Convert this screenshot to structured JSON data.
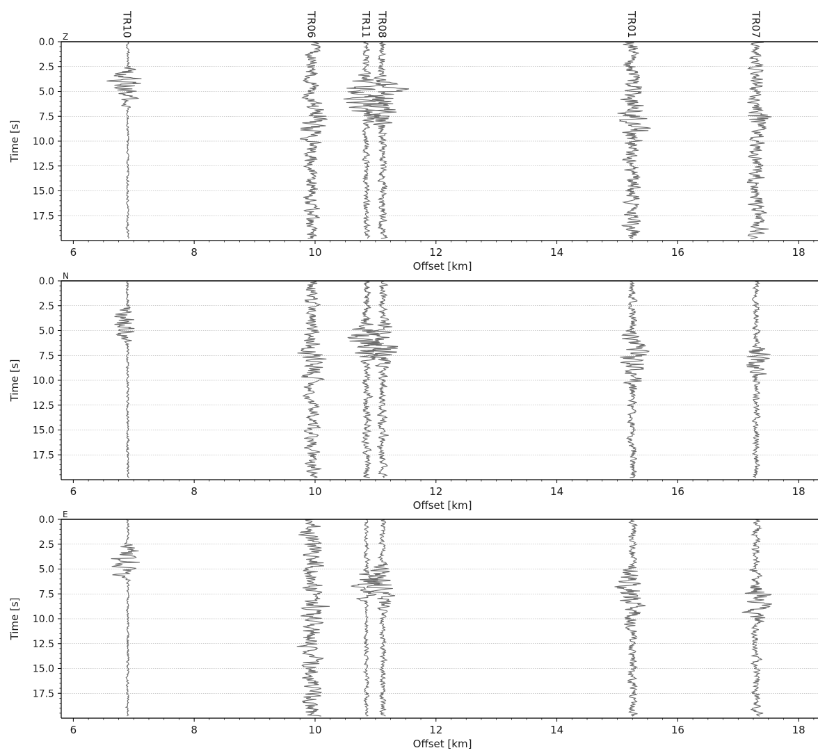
{
  "chart_data": {
    "type": "seismic_record_section",
    "x_label": "Offset [km]",
    "y_label": "Time [s]",
    "xlim": [
      5.8,
      18.3
    ],
    "ylim": [
      0,
      20
    ],
    "y_inverted": true,
    "x_ticks": [
      6,
      8,
      10,
      12,
      14,
      16,
      18
    ],
    "y_ticks": [
      0.0,
      2.5,
      5.0,
      7.5,
      10.0,
      12.5,
      15.0,
      17.5
    ],
    "y_tick_labels": [
      "0.0",
      "2.5",
      "5.0",
      "7.5",
      "10.0",
      "12.5",
      "15.0",
      "17.5"
    ],
    "horizontal_grid": true,
    "trace_color": "#6b6b6b",
    "stations": [
      {
        "name": "TR10",
        "offset_km": 6.9
      },
      {
        "name": "TR06",
        "offset_km": 9.95
      },
      {
        "name": "TR11",
        "offset_km": 10.85
      },
      {
        "name": "TR08",
        "offset_km": 11.12
      },
      {
        "name": "TR01",
        "offset_km": 15.25
      },
      {
        "name": "TR07",
        "offset_km": 17.3
      }
    ],
    "panels": [
      {
        "component": "Z",
        "traces": [
          {
            "station": "TR10",
            "background": 0.03,
            "bursts": [
              {
                "start": 2.3,
                "peak": 4.0,
                "end": 6.8,
                "amp": 0.45
              }
            ]
          },
          {
            "station": "TR06",
            "background": 0.18,
            "bursts": [
              {
                "start": 5.0,
                "peak": 7.5,
                "end": 12.5,
                "amp": 0.38
              }
            ]
          },
          {
            "station": "TR11",
            "background": 0.08,
            "bursts": [
              {
                "start": 3.0,
                "peak": 5.5,
                "end": 8.5,
                "amp": 0.6
              }
            ]
          },
          {
            "station": "TR08",
            "background": 0.1,
            "bursts": [
              {
                "start": 3.0,
                "peak": 6.0,
                "end": 9.0,
                "amp": 0.55
              }
            ]
          },
          {
            "station": "TR01",
            "background": 0.2,
            "bursts": [
              {
                "start": 4.0,
                "peak": 7.5,
                "end": 12.0,
                "amp": 0.42
              }
            ]
          },
          {
            "station": "TR07",
            "background": 0.2,
            "bursts": [
              {
                "start": 6.5,
                "peak": 7.2,
                "end": 9.5,
                "amp": 0.45
              }
            ]
          }
        ]
      },
      {
        "component": "N",
        "traces": [
          {
            "station": "TR10",
            "background": 0.03,
            "bursts": [
              {
                "start": 2.3,
                "peak": 4.2,
                "end": 6.5,
                "amp": 0.42
              }
            ]
          },
          {
            "station": "TR06",
            "background": 0.18,
            "bursts": [
              {
                "start": 4.5,
                "peak": 8.0,
                "end": 12.0,
                "amp": 0.35
              }
            ]
          },
          {
            "station": "TR11",
            "background": 0.1,
            "bursts": [
              {
                "start": 3.5,
                "peak": 6.0,
                "end": 8.5,
                "amp": 0.55
              }
            ]
          },
          {
            "station": "TR08",
            "background": 0.1,
            "bursts": [
              {
                "start": 3.5,
                "peak": 6.5,
                "end": 9.0,
                "amp": 0.5
              }
            ]
          },
          {
            "station": "TR01",
            "background": 0.1,
            "bursts": [
              {
                "start": 4.5,
                "peak": 7.5,
                "end": 11.5,
                "amp": 0.45
              }
            ]
          },
          {
            "station": "TR07",
            "background": 0.08,
            "bursts": [
              {
                "start": 6.5,
                "peak": 7.2,
                "end": 10.0,
                "amp": 0.4
              }
            ]
          }
        ]
      },
      {
        "component": "E",
        "traces": [
          {
            "station": "TR10",
            "background": 0.03,
            "bursts": [
              {
                "start": 2.3,
                "peak": 4.2,
                "end": 6.3,
                "amp": 0.42
              }
            ]
          },
          {
            "station": "TR06",
            "background": 0.25,
            "bursts": [
              {
                "start": 0.5,
                "peak": 9.0,
                "end": 19.0,
                "amp": 0.3
              }
            ]
          },
          {
            "station": "TR11",
            "background": 0.05,
            "bursts": [
              {
                "start": 5.0,
                "peak": 6.0,
                "end": 8.5,
                "amp": 0.4
              }
            ]
          },
          {
            "station": "TR08",
            "background": 0.07,
            "bursts": [
              {
                "start": 3.5,
                "peak": 6.5,
                "end": 9.5,
                "amp": 0.4
              }
            ]
          },
          {
            "station": "TR01",
            "background": 0.1,
            "bursts": [
              {
                "start": 4.0,
                "peak": 7.0,
                "end": 12.0,
                "amp": 0.42
              }
            ]
          },
          {
            "station": "TR07",
            "background": 0.1,
            "bursts": [
              {
                "start": 6.5,
                "peak": 7.5,
                "end": 11.0,
                "amp": 0.45
              }
            ]
          }
        ]
      }
    ]
  }
}
